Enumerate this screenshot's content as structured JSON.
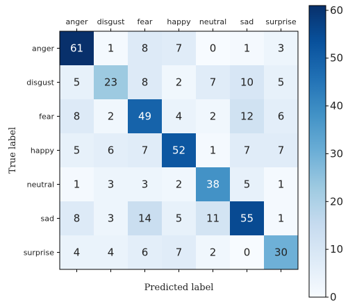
{
  "chart_data": {
    "type": "heatmap",
    "title": "",
    "xlabel": "Predicted label",
    "ylabel": "True label",
    "x_categories": [
      "anger",
      "disgust",
      "fear",
      "happy",
      "neutral",
      "sad",
      "surprise"
    ],
    "y_categories": [
      "anger",
      "disgust",
      "fear",
      "happy",
      "neutral",
      "sad",
      "surprise"
    ],
    "values": [
      [
        61,
        1,
        8,
        7,
        0,
        1,
        3
      ],
      [
        5,
        23,
        8,
        2,
        7,
        10,
        5
      ],
      [
        8,
        2,
        49,
        4,
        2,
        12,
        6
      ],
      [
        5,
        6,
        7,
        52,
        1,
        7,
        7
      ],
      [
        1,
        3,
        3,
        2,
        38,
        5,
        1
      ],
      [
        8,
        3,
        14,
        5,
        11,
        55,
        1
      ],
      [
        4,
        4,
        6,
        7,
        2,
        0,
        30
      ]
    ],
    "x_tick_position": "top",
    "colormap": "Blues",
    "colorbar": {
      "range": [
        0,
        61
      ],
      "ticks": [
        0,
        10,
        20,
        30,
        40,
        50,
        60
      ]
    },
    "colors": {
      "low": "#f7fbff",
      "high": "#08306b",
      "text_dark": "#222222",
      "text_light": "#ffffff"
    }
  }
}
